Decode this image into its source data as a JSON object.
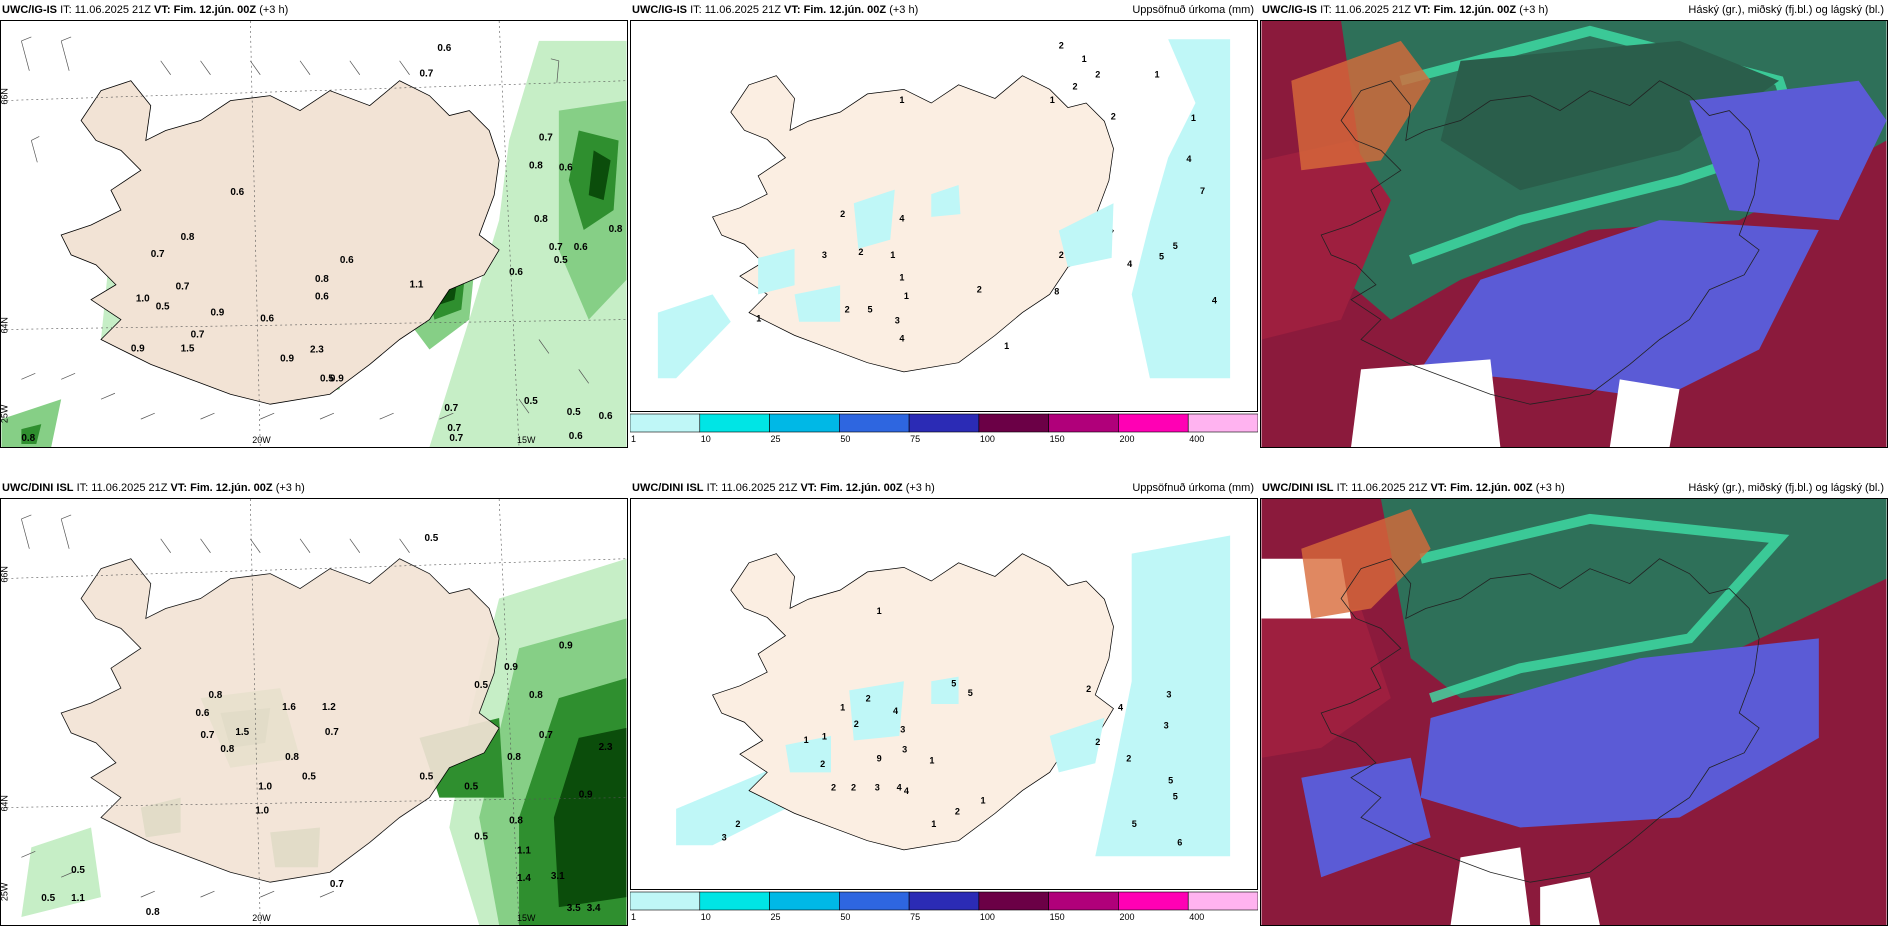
{
  "panels": {
    "top_left": {
      "model": "UWC/IG-IS",
      "it": "IT: 11.06.2025 21Z",
      "vt": "VT: Fim. 12.jún. 00Z",
      "lead": "(+3 h)",
      "right": ""
    },
    "top_mid": {
      "model": "UWC/IG-IS",
      "it": "IT: 11.06.2025 21Z",
      "vt": "VT: Fim. 12.jún. 00Z",
      "lead": "(+3 h)",
      "right": "Uppsöfnuð úrkoma (mm)"
    },
    "top_right": {
      "model": "UWC/IG-IS",
      "it": "IT: 11.06.2025 21Z",
      "vt": "VT: Fim. 12.jún. 00Z",
      "lead": "(+3 h)",
      "right": "Háský (gr.), miðský (fj.bl.) og lágský (bl.)"
    },
    "bot_left": {
      "model": "UWC/DINI ISL",
      "it": "IT: 11.06.2025 21Z",
      "vt": "VT: Fim. 12.jún. 00Z",
      "lead": "(+3 h)",
      "right": ""
    },
    "bot_mid": {
      "model": "UWC/DINI ISL",
      "it": "IT: 11.06.2025 21Z",
      "vt": "VT: Fim. 12.jún. 00Z",
      "lead": "(+3 h)",
      "right": "Uppsöfnuð úrkoma (mm)"
    },
    "bot_right": {
      "model": "UWC/DINI ISL",
      "it": "IT: 11.06.2025 21Z",
      "vt": "VT: Fim. 12.jún. 00Z",
      "lead": "(+3 h)",
      "right": "Háský (gr.), miðský (fj.bl.) og lágský (bl.)"
    }
  },
  "axis_labels": {
    "lat66": "66N",
    "lat64": "64N",
    "lon25": "25W",
    "lon20": "20W",
    "lon15": "15W"
  },
  "colorbar": {
    "ticks": [
      "1",
      "10",
      "25",
      "50",
      "75",
      "100",
      "150",
      "200",
      "400"
    ],
    "colors": [
      "#bff7f7",
      "#00e5e5",
      "#00b8e6",
      "#2e66e0",
      "#2b2bb5",
      "#6b0046",
      "#b0007a",
      "#ff00b4",
      "#ffb3f0"
    ]
  },
  "values": {
    "top_left": [
      "0.6",
      "0.7",
      "0.7",
      "0.8",
      "0.6",
      "0.6",
      "0.7",
      "0.8",
      "1.0",
      "0.7",
      "0.5",
      "0.9",
      "0.7",
      "1.5",
      "0.9",
      "0.6",
      "0.8",
      "0.6",
      "0.6",
      "0.9",
      "2.3",
      "0.9",
      "1.1",
      "0.6",
      "0.5",
      "0.8",
      "0.7",
      "0.6",
      "0.8",
      "0.5",
      "0.7",
      "0.7",
      "0.7",
      "0.5",
      "0.5",
      "0.6",
      "0.6",
      "0.8"
    ],
    "top_mid": [
      "2",
      "1",
      "2",
      "2",
      "1",
      "1",
      "2",
      "1",
      "4",
      "5",
      "2",
      "1",
      "1",
      "2",
      "1",
      "3",
      "5",
      "4",
      "2",
      "1",
      "2",
      "4",
      "7",
      "5",
      "4",
      "1",
      "8",
      "2",
      "1",
      "3",
      "4"
    ],
    "bot_left": [
      "0.5",
      "0.8",
      "0.6",
      "0.7",
      "1.5",
      "0.8",
      "1.0",
      "1.6",
      "1.2",
      "0.7",
      "0.8",
      "0.5",
      "0.5",
      "0.5",
      "0.8",
      "0.9",
      "0.8",
      "0.5",
      "0.9",
      "0.7",
      "1.0",
      "0.8",
      "1.1",
      "1.4",
      "3.1",
      "3.5",
      "3.4",
      "0.5",
      "0.5",
      "0.7",
      "0.8",
      "0.5",
      "1.1",
      "2.3",
      "0.9"
    ],
    "bot_mid": [
      "1",
      "2",
      "1",
      "2",
      "1",
      "2",
      "3",
      "5",
      "4",
      "9",
      "1",
      "2",
      "2",
      "3",
      "4",
      "1",
      "2",
      "3",
      "4",
      "5",
      "2",
      "4",
      "3",
      "3",
      "2",
      "5",
      "5",
      "5",
      "6",
      "1",
      "1",
      "2",
      "3",
      "2"
    ]
  }
}
